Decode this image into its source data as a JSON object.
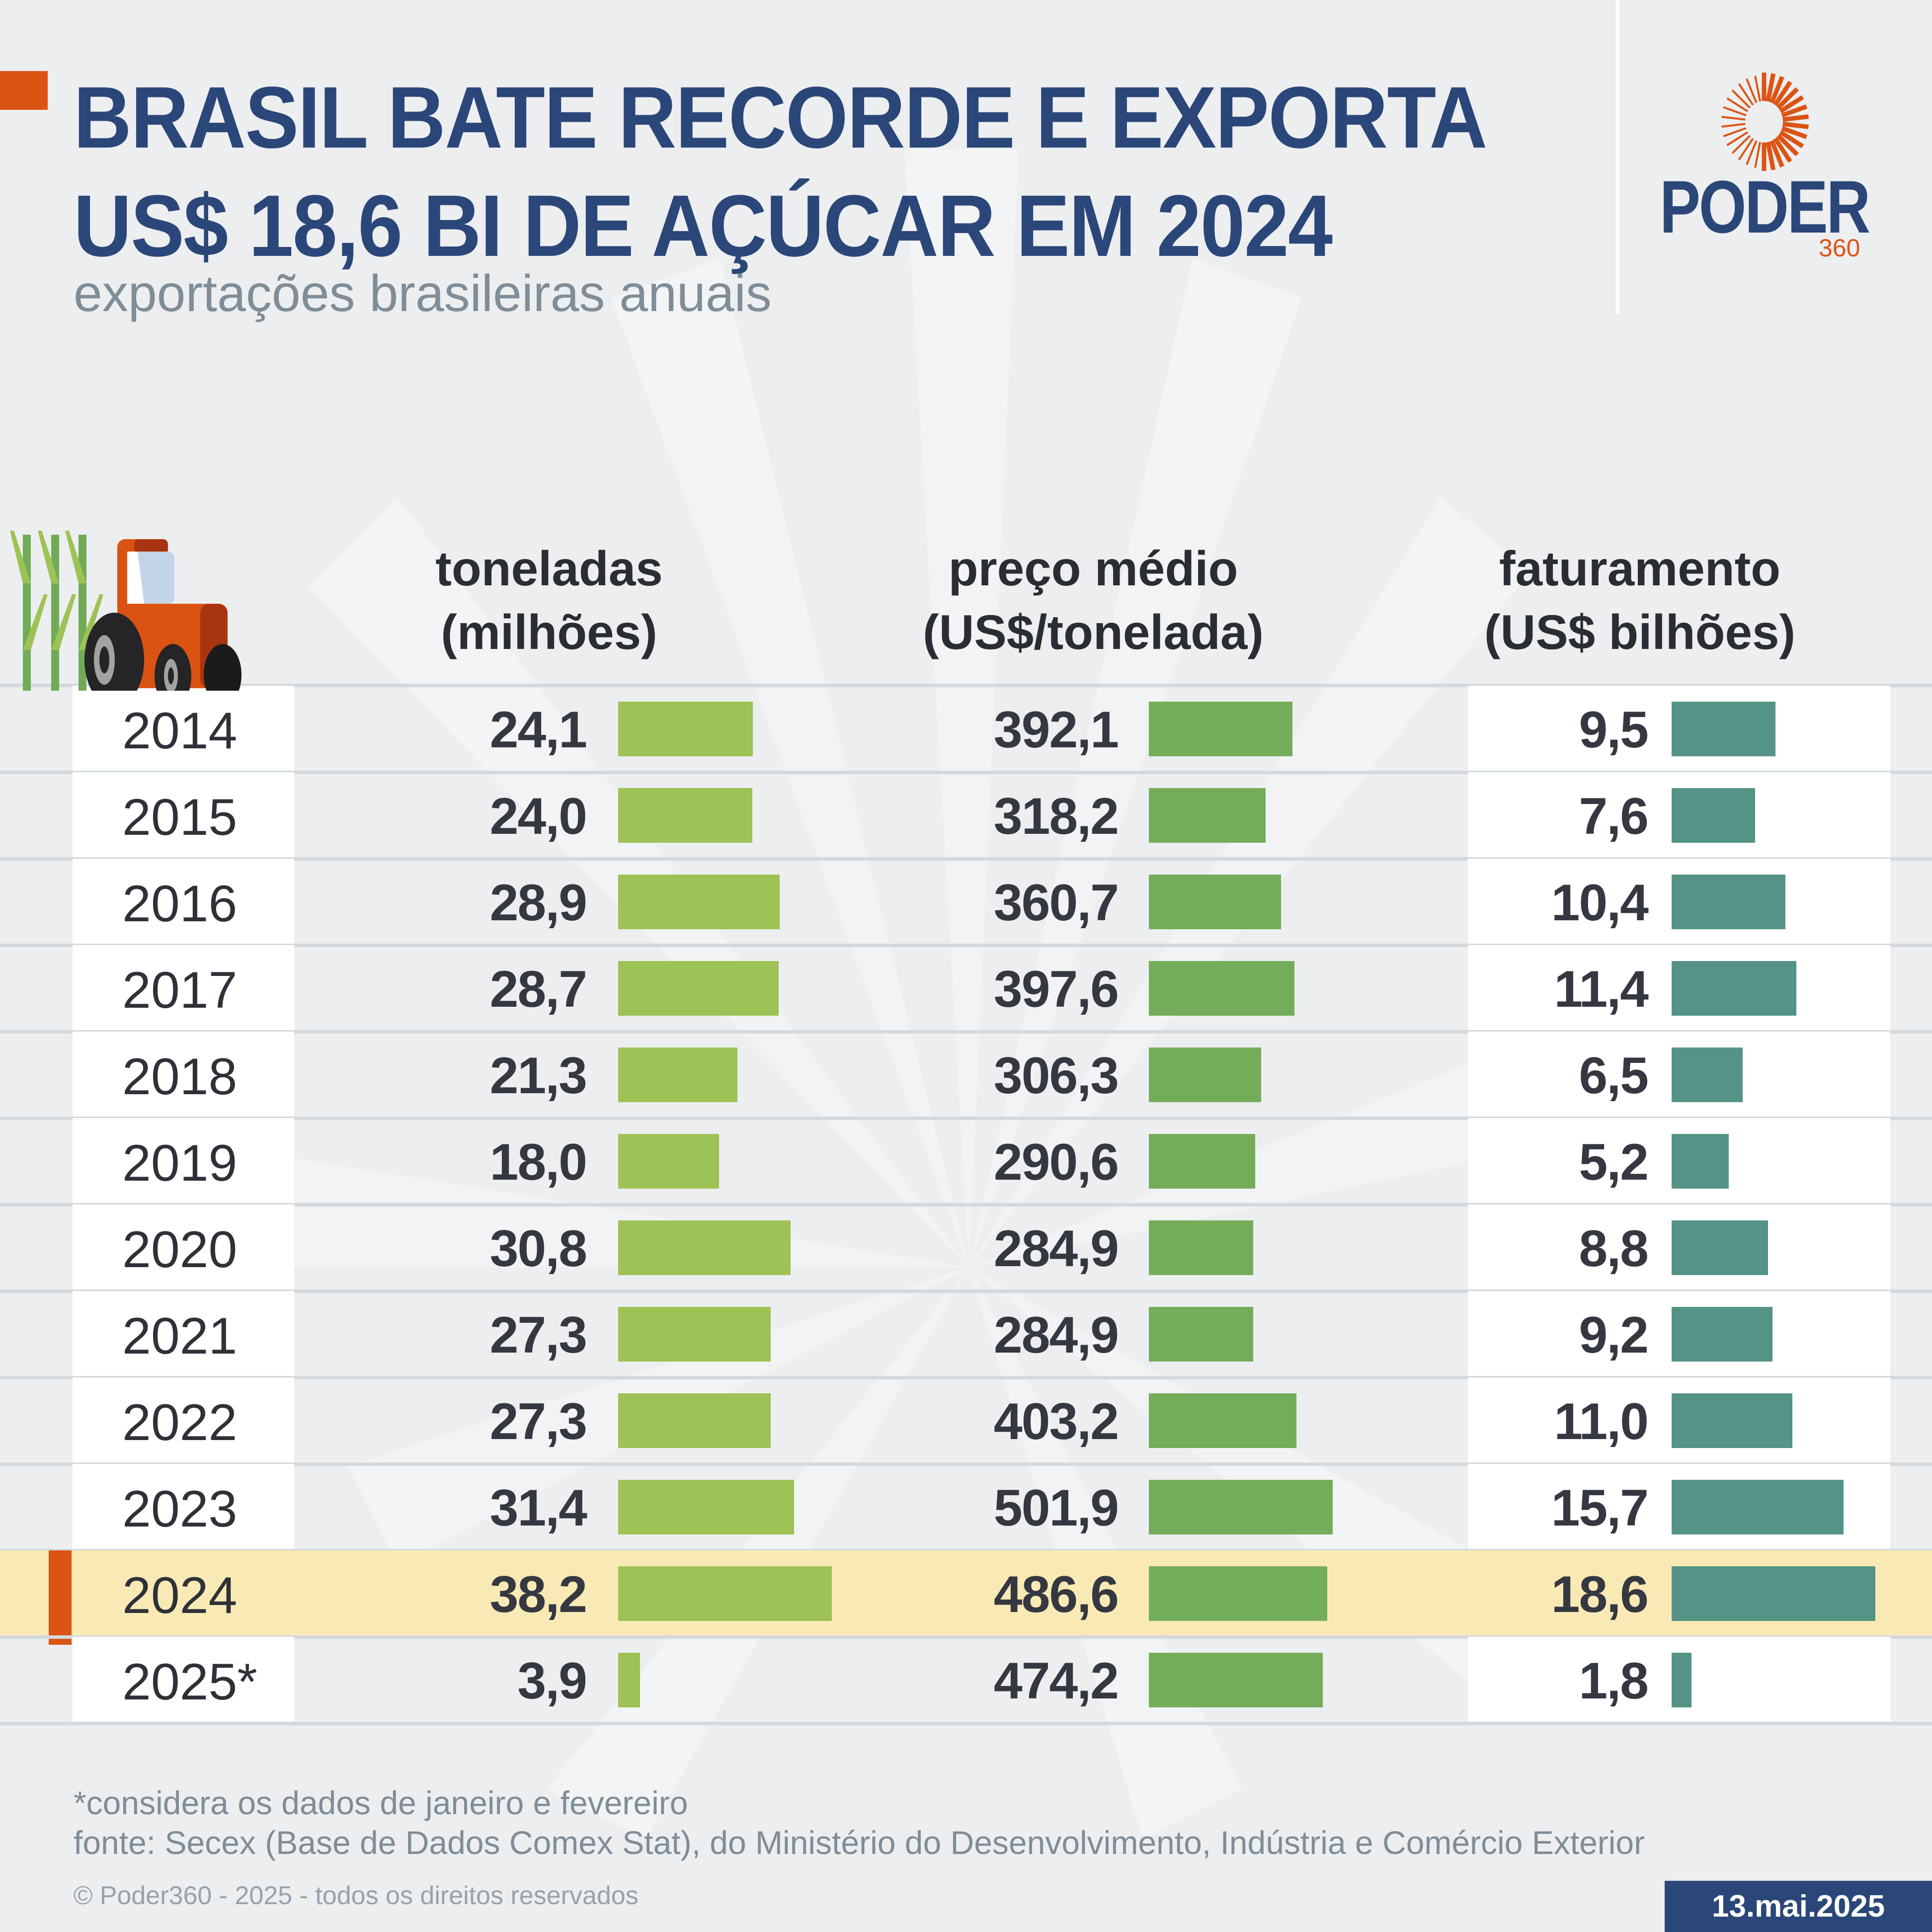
{
  "header": {
    "title_line1": "BRASIL BATE RECORDE E EXPORTA",
    "title_line2": "US$ 18,6 BI DE AÇÚCAR EM 2024",
    "subtitle": "exportações brasileiras anuais",
    "logo_word": "PODER",
    "logo_sub": "360"
  },
  "columns": {
    "col1_line1": "toneladas",
    "col1_line2": "(milhões)",
    "col2_line1": "preço médio",
    "col2_line2": "(US$/tonelada)",
    "col3_line1": "faturamento",
    "col3_line2": "(US$ bilhões)"
  },
  "colors": {
    "brand_blue": "#2b4779",
    "accent_orange": "#dc5414",
    "tons_bar": "#9dc255",
    "price_bar": "#74ad5a",
    "revenue_bar": "#549386",
    "highlight": "#f9eab5"
  },
  "chart_data": {
    "type": "table",
    "title": "BRASIL BATE RECORDE E EXPORTA US$ 18,6 BI DE AÇÚCAR EM 2024",
    "subtitle": "exportações brasileiras anuais",
    "categories": [
      "2014",
      "2015",
      "2016",
      "2017",
      "2018",
      "2019",
      "2020",
      "2021",
      "2022",
      "2023",
      "2024",
      "2025*"
    ],
    "highlight_category": "2024",
    "series": [
      {
        "name": "toneladas (milhões)",
        "values": [
          24.1,
          24.0,
          28.9,
          28.7,
          21.3,
          18.0,
          30.8,
          27.3,
          27.3,
          31.4,
          38.2,
          3.9
        ],
        "labels": [
          "24,1",
          "24,0",
          "28,9",
          "28,7",
          "21,3",
          "18,0",
          "30,8",
          "27,3",
          "27,3",
          "31,4",
          "38,2",
          "3,9"
        ]
      },
      {
        "name": "preço médio (US$/tonelada)",
        "values": [
          392.1,
          318.2,
          360.7,
          397.6,
          306.3,
          290.6,
          284.9,
          284.9,
          403.2,
          501.9,
          486.6,
          474.2
        ],
        "labels": [
          "392,1",
          "318,2",
          "360,7",
          "397,6",
          "306,3",
          "290,6",
          "284,9",
          "284,9",
          "403,2",
          "501,9",
          "486,6",
          "474,2"
        ]
      },
      {
        "name": "faturamento (US$ bilhões)",
        "values": [
          9.5,
          7.6,
          10.4,
          11.4,
          6.5,
          5.2,
          8.8,
          9.2,
          11.0,
          15.7,
          18.6,
          1.8
        ],
        "labels": [
          "9,5",
          "7,6",
          "10,4",
          "11,4",
          "6,5",
          "5,2",
          "8,8",
          "9,2",
          "11,0",
          "15,7",
          "18,6",
          "1,8"
        ]
      }
    ]
  },
  "footer": {
    "note": "*considera os dados de janeiro e fevereiro",
    "source": "fonte: Secex (Base de Dados Comex Stat), do Ministério do Desenvolvimento, Indústria e Comércio Exterior",
    "copyright": "© Poder360 - 2025 - todos os direitos reservados",
    "date": "13.mai.2025"
  }
}
